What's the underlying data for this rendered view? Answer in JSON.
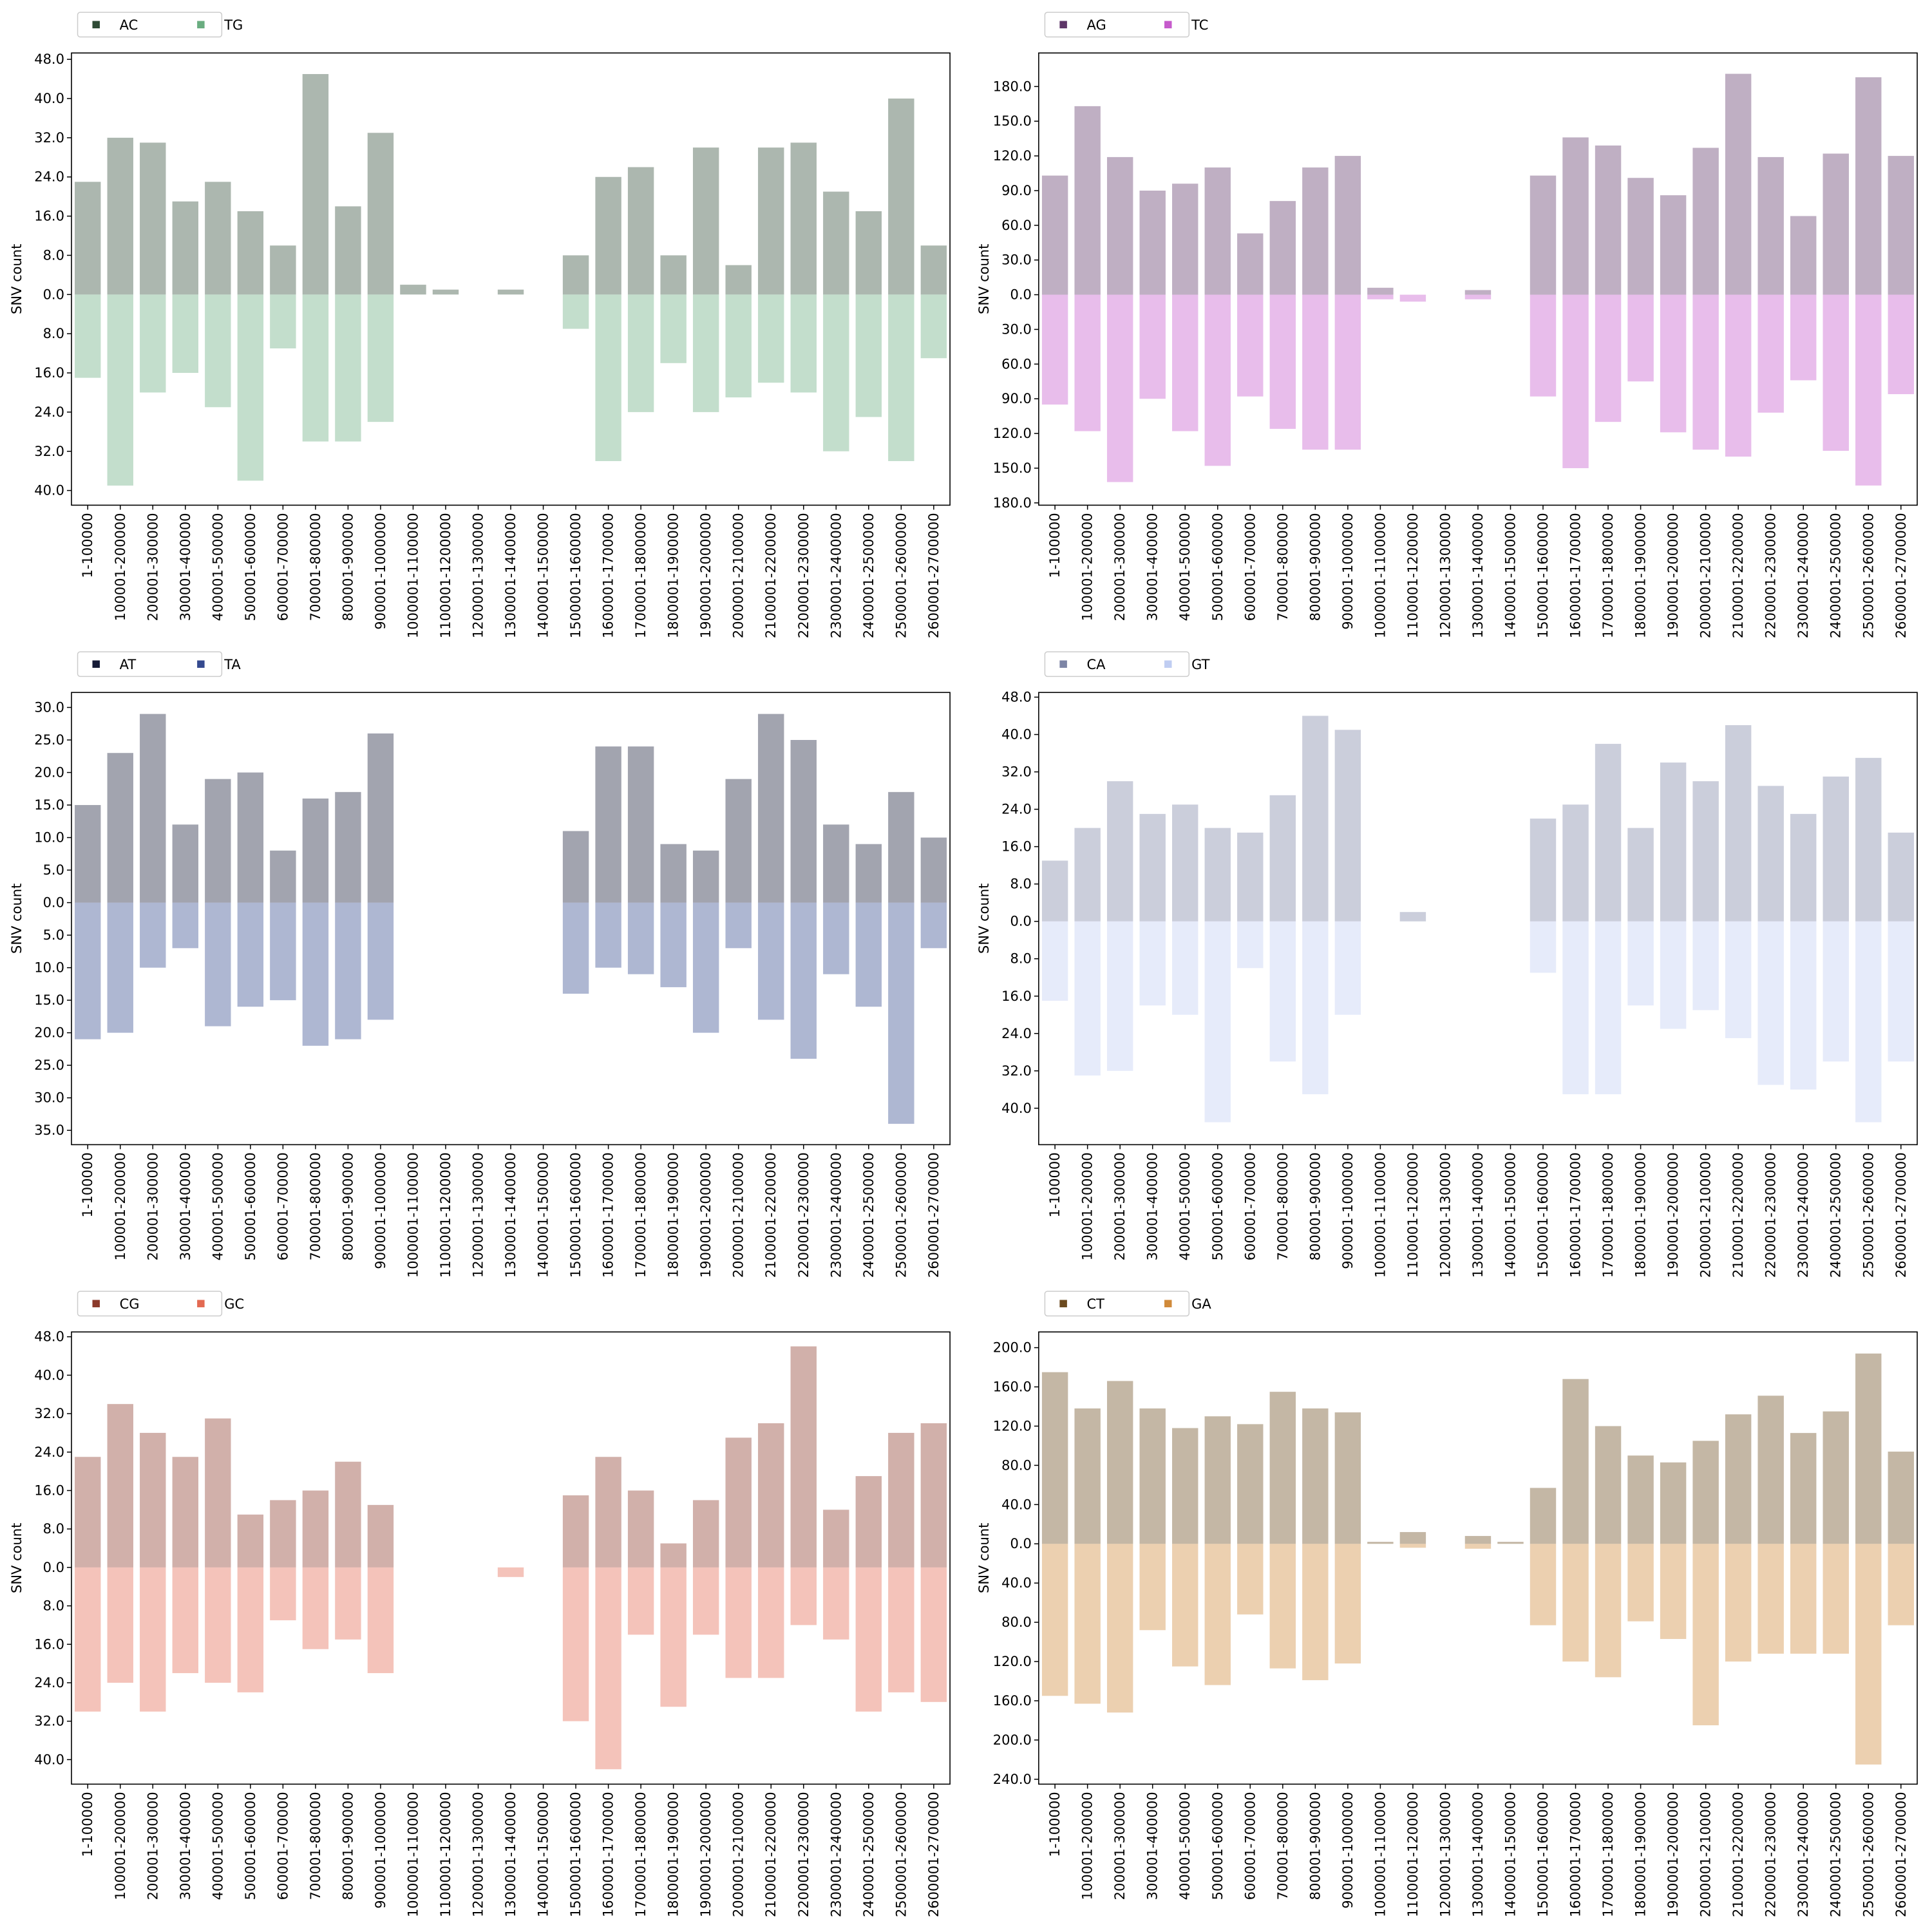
{
  "chart_data": [
    {
      "type": "bar",
      "ylabel": "SNV count",
      "legend": "top-left",
      "categories": [
        "1-100000",
        "100001-200000",
        "200001-300000",
        "300001-400000",
        "400001-500000",
        "500001-600000",
        "600001-700000",
        "700001-800000",
        "800001-900000",
        "900001-1000000",
        "1000001-1100000",
        "1100001-1200000",
        "1200001-1300000",
        "1300001-1400000",
        "1400001-1500000",
        "1500001-1600000",
        "1600001-1700000",
        "1700001-1800000",
        "1800001-1900000",
        "1900001-2000000",
        "2000001-2100000",
        "2100001-2200000",
        "2200001-2300000",
        "2300001-2400000",
        "2400001-2500000",
        "2500001-2600000",
        "2600001-2700000"
      ],
      "series": [
        {
          "name": "AC",
          "color": "#2f4b36",
          "values": [
            23,
            32,
            31,
            19,
            23,
            17,
            10,
            45,
            18,
            33,
            2,
            1,
            0,
            1,
            0,
            8,
            24,
            26,
            8,
            30,
            6,
            30,
            31,
            21,
            17,
            40,
            10
          ]
        },
        {
          "name": "TG",
          "color": "#6aad80",
          "values": [
            -17,
            -39,
            -20,
            -16,
            -23,
            -38,
            -11,
            -30,
            -30,
            -26,
            0,
            0,
            0,
            0,
            0,
            -7,
            -34,
            -24,
            -14,
            -24,
            -21,
            -18,
            -20,
            -32,
            -25,
            -34,
            -13
          ]
        }
      ],
      "ylim": [
        -43,
        49.3
      ],
      "yticks": [
        {
          "value": 48,
          "label": "48.0"
        },
        {
          "value": 40,
          "label": "40.0"
        },
        {
          "value": 32,
          "label": "32.0"
        },
        {
          "value": 24,
          "label": "24.0"
        },
        {
          "value": 16,
          "label": "16.0"
        },
        {
          "value": 8,
          "label": "8.0"
        },
        {
          "value": 0,
          "label": "0.0"
        },
        {
          "value": -8,
          "label": "8.0"
        },
        {
          "value": -16,
          "label": "16.0"
        },
        {
          "value": -24,
          "label": "24.0"
        },
        {
          "value": -32,
          "label": "32.0"
        },
        {
          "value": -40,
          "label": "40.0"
        }
      ]
    },
    {
      "type": "bar",
      "ylabel": "SNV count",
      "legend": "top-left",
      "categories": [
        "1-100000",
        "100001-200000",
        "200001-300000",
        "300001-400000",
        "400001-500000",
        "500001-600000",
        "600001-700000",
        "700001-800000",
        "800001-900000",
        "900001-1000000",
        "1000001-1100000",
        "1100001-1200000",
        "1200001-1300000",
        "1300001-1400000",
        "1400001-1500000",
        "1500001-1600000",
        "1600001-1700000",
        "1700001-1800000",
        "1800001-1900000",
        "1900001-2000000",
        "2000001-2100000",
        "2100001-2200000",
        "2200001-2300000",
        "2300001-2400000",
        "2400001-2500000",
        "2500001-2600000",
        "2600001-2700000"
      ],
      "series": [
        {
          "name": "AG",
          "color": "#5e3769",
          "values": [
            103,
            163,
            119,
            90,
            96,
            110,
            53,
            81,
            110,
            120,
            6,
            0,
            0,
            4,
            0,
            103,
            136,
            129,
            101,
            86,
            127,
            191,
            119,
            68,
            122,
            188,
            120
          ]
        },
        {
          "name": "TC",
          "color": "#c65bcc",
          "values": [
            -95,
            -118,
            -162,
            -90,
            -118,
            -148,
            -88,
            -116,
            -134,
            -134,
            -4,
            -6,
            0,
            -4,
            0,
            -88,
            -150,
            -110,
            -75,
            -119,
            -134,
            -140,
            -102,
            -74,
            -135,
            -165,
            -86
          ]
        }
      ],
      "ylim": [
        -182,
        209
      ],
      "yticks": [
        {
          "value": 180,
          "label": "180.0"
        },
        {
          "value": 150,
          "label": "150.0"
        },
        {
          "value": 120,
          "label": "120.0"
        },
        {
          "value": 90,
          "label": "90.0"
        },
        {
          "value": 60,
          "label": "60.0"
        },
        {
          "value": 30,
          "label": "30.0"
        },
        {
          "value": 0,
          "label": "0.0"
        },
        {
          "value": -30,
          "label": "30.0"
        },
        {
          "value": -60,
          "label": "60.0"
        },
        {
          "value": -90,
          "label": "90.0"
        },
        {
          "value": -120,
          "label": "120.0"
        },
        {
          "value": -150,
          "label": "150.0"
        },
        {
          "value": -180,
          "label": "180.0"
        }
      ]
    },
    {
      "type": "bar",
      "ylabel": "SNV count",
      "legend": "top-left",
      "categories": [
        "1-100000",
        "100001-200000",
        "200001-300000",
        "300001-400000",
        "400001-500000",
        "500001-600000",
        "600001-700000",
        "700001-800000",
        "800001-900000",
        "900001-1000000",
        "1000001-1100000",
        "1100001-1200000",
        "1200001-1300000",
        "1300001-1400000",
        "1400001-1500000",
        "1500001-1600000",
        "1600001-1700000",
        "1700001-1800000",
        "1800001-1900000",
        "1900001-2000000",
        "2000001-2100000",
        "2100001-2200000",
        "2200001-2300000",
        "2300001-2400000",
        "2400001-2500000",
        "2500001-2600000",
        "2600001-2700000"
      ],
      "series": [
        {
          "name": "AT",
          "color": "#161c37",
          "values": [
            15,
            23,
            29,
            12,
            19,
            20,
            8,
            16,
            17,
            26,
            0,
            0,
            0,
            0,
            0,
            11,
            24,
            24,
            9,
            8,
            19,
            29,
            25,
            12,
            9,
            17,
            10
          ]
        },
        {
          "name": "TA",
          "color": "#354a8f",
          "values": [
            -21,
            -20,
            -10,
            -7,
            -19,
            -16,
            -15,
            -22,
            -21,
            -18,
            0,
            0,
            0,
            0,
            0,
            -14,
            -10,
            -11,
            -13,
            -20,
            -7,
            -18,
            -24,
            -11,
            -16,
            -34,
            -7
          ]
        }
      ],
      "ylim": [
        -37.2,
        32.3
      ],
      "yticks": [
        {
          "value": 30,
          "label": "30.0"
        },
        {
          "value": 25,
          "label": "25.0"
        },
        {
          "value": 20,
          "label": "20.0"
        },
        {
          "value": 15,
          "label": "15.0"
        },
        {
          "value": 10,
          "label": "10.0"
        },
        {
          "value": 5,
          "label": "5.0"
        },
        {
          "value": 0,
          "label": "0.0"
        },
        {
          "value": -5,
          "label": "5.0"
        },
        {
          "value": -10,
          "label": "10.0"
        },
        {
          "value": -15,
          "label": "15.0"
        },
        {
          "value": -20,
          "label": "20.0"
        },
        {
          "value": -25,
          "label": "25.0"
        },
        {
          "value": -30,
          "label": "30.0"
        },
        {
          "value": -35,
          "label": "35.0"
        }
      ]
    },
    {
      "type": "bar",
      "ylabel": "SNV count",
      "legend": "top-left",
      "categories": [
        "1-100000",
        "100001-200000",
        "200001-300000",
        "300001-400000",
        "400001-500000",
        "500001-600000",
        "600001-700000",
        "700001-800000",
        "800001-900000",
        "900001-1000000",
        "1000001-1100000",
        "1100001-1200000",
        "1200001-1300000",
        "1300001-1400000",
        "1400001-1500000",
        "1500001-1600000",
        "1600001-1700000",
        "1700001-1800000",
        "1800001-1900000",
        "1900001-2000000",
        "2000001-2100000",
        "2100001-2200000",
        "2200001-2300000",
        "2300001-2400000",
        "2400001-2500000",
        "2500001-2600000",
        "2600001-2700000"
      ],
      "series": [
        {
          "name": "CA",
          "color": "#7d85a5",
          "values": [
            13,
            20,
            30,
            23,
            25,
            20,
            19,
            27,
            44,
            41,
            0,
            2,
            0,
            0,
            0,
            22,
            25,
            38,
            20,
            34,
            30,
            42,
            29,
            23,
            31,
            35,
            19
          ]
        },
        {
          "name": "GT",
          "color": "#c0cdf2",
          "values": [
            -17,
            -33,
            -32,
            -18,
            -20,
            -43,
            -10,
            -30,
            -37,
            -20,
            0,
            0,
            0,
            0,
            0,
            -11,
            -37,
            -37,
            -18,
            -23,
            -19,
            -25,
            -35,
            -36,
            -30,
            -43,
            -30
          ]
        }
      ],
      "ylim": [
        -47.8,
        49
      ],
      "yticks": [
        {
          "value": 48,
          "label": "48.0"
        },
        {
          "value": 40,
          "label": "40.0"
        },
        {
          "value": 32,
          "label": "32.0"
        },
        {
          "value": 24,
          "label": "24.0"
        },
        {
          "value": 16,
          "label": "16.0"
        },
        {
          "value": 8,
          "label": "8.0"
        },
        {
          "value": 0,
          "label": "0.0"
        },
        {
          "value": -8,
          "label": "8.0"
        },
        {
          "value": -16,
          "label": "16.0"
        },
        {
          "value": -24,
          "label": "24.0"
        },
        {
          "value": -32,
          "label": "32.0"
        },
        {
          "value": -40,
          "label": "40.0"
        }
      ]
    },
    {
      "type": "bar",
      "ylabel": "SNV count",
      "legend": "top-left",
      "categories": [
        "1-100000",
        "100001-200000",
        "200001-300000",
        "300001-400000",
        "400001-500000",
        "500001-600000",
        "600001-700000",
        "700001-800000",
        "800001-900000",
        "900001-1000000",
        "1000001-1100000",
        "1100001-1200000",
        "1200001-1300000",
        "1300001-1400000",
        "1400001-1500000",
        "1500001-1600000",
        "1600001-1700000",
        "1700001-1800000",
        "1800001-1900000",
        "1900001-2000000",
        "2000001-2100000",
        "2100001-2200000",
        "2200001-2300000",
        "2300001-2400000",
        "2400001-2500000",
        "2500001-2600000",
        "2600001-2700000"
      ],
      "series": [
        {
          "name": "CG",
          "color": "#8b3a2b",
          "values": [
            23,
            34,
            28,
            23,
            31,
            11,
            14,
            16,
            22,
            13,
            0,
            0,
            0,
            0,
            0,
            15,
            23,
            16,
            5,
            14,
            27,
            30,
            46,
            12,
            19,
            28,
            30
          ]
        },
        {
          "name": "GC",
          "color": "#e36a52",
          "values": [
            -30,
            -24,
            -30,
            -22,
            -24,
            -26,
            -11,
            -17,
            -15,
            -22,
            0,
            0,
            0,
            -2,
            0,
            -32,
            -42,
            -14,
            -29,
            -14,
            -23,
            -23,
            -12,
            -15,
            -30,
            -26,
            -28
          ]
        }
      ],
      "ylim": [
        -45.1,
        49
      ],
      "yticks": [
        {
          "value": 48,
          "label": "48.0"
        },
        {
          "value": 40,
          "label": "40.0"
        },
        {
          "value": 32,
          "label": "32.0"
        },
        {
          "value": 24,
          "label": "24.0"
        },
        {
          "value": 16,
          "label": "16.0"
        },
        {
          "value": 8,
          "label": "8.0"
        },
        {
          "value": 0,
          "label": "0.0"
        },
        {
          "value": -8,
          "label": "8.0"
        },
        {
          "value": -16,
          "label": "16.0"
        },
        {
          "value": -24,
          "label": "24.0"
        },
        {
          "value": -32,
          "label": "32.0"
        },
        {
          "value": -40,
          "label": "40.0"
        }
      ]
    },
    {
      "type": "bar",
      "ylabel": "SNV count",
      "legend": "top-left",
      "categories": [
        "1-100000",
        "100001-200000",
        "200001-300000",
        "300001-400000",
        "400001-500000",
        "500001-600000",
        "600001-700000",
        "700001-800000",
        "800001-900000",
        "900001-1000000",
        "1000001-1100000",
        "1100001-1200000",
        "1200001-1300000",
        "1300001-1400000",
        "1400001-1500000",
        "1500001-1600000",
        "1600001-1700000",
        "1700001-1800000",
        "1800001-1900000",
        "1900001-2000000",
        "2000001-2100000",
        "2100001-2200000",
        "2200001-2300000",
        "2300001-2400000",
        "2400001-2500000",
        "2500001-2600000",
        "2600001-2700000"
      ],
      "series": [
        {
          "name": "CT",
          "color": "#6b4a1f",
          "values": [
            175,
            138,
            166,
            138,
            118,
            130,
            122,
            155,
            138,
            134,
            2,
            12,
            0,
            8,
            2,
            57,
            168,
            120,
            90,
            83,
            105,
            132,
            151,
            113,
            135,
            194,
            94
          ]
        },
        {
          "name": "GA",
          "color": "#d08a3a",
          "values": [
            -155,
            -163,
            -172,
            -88,
            -125,
            -144,
            -72,
            -127,
            -139,
            -122,
            0,
            -4,
            0,
            -5,
            0,
            -83,
            -120,
            -136,
            -79,
            -97,
            -185,
            -120,
            -112,
            -112,
            -112,
            -225,
            -83
          ]
        }
      ],
      "ylim": [
        -245,
        216
      ],
      "yticks": [
        {
          "value": 200,
          "label": "200.0"
        },
        {
          "value": 160,
          "label": "160.0"
        },
        {
          "value": 120,
          "label": "120.0"
        },
        {
          "value": 80,
          "label": "80.0"
        },
        {
          "value": 40,
          "label": "40.0"
        },
        {
          "value": 0,
          "label": "0.0"
        },
        {
          "value": -40,
          "label": "40.0"
        },
        {
          "value": -80,
          "label": "80.0"
        },
        {
          "value": -120,
          "label": "120.0"
        },
        {
          "value": -160,
          "label": "160.0"
        },
        {
          "value": -200,
          "label": "200.0"
        },
        {
          "value": -240,
          "label": "240.0"
        }
      ]
    }
  ]
}
